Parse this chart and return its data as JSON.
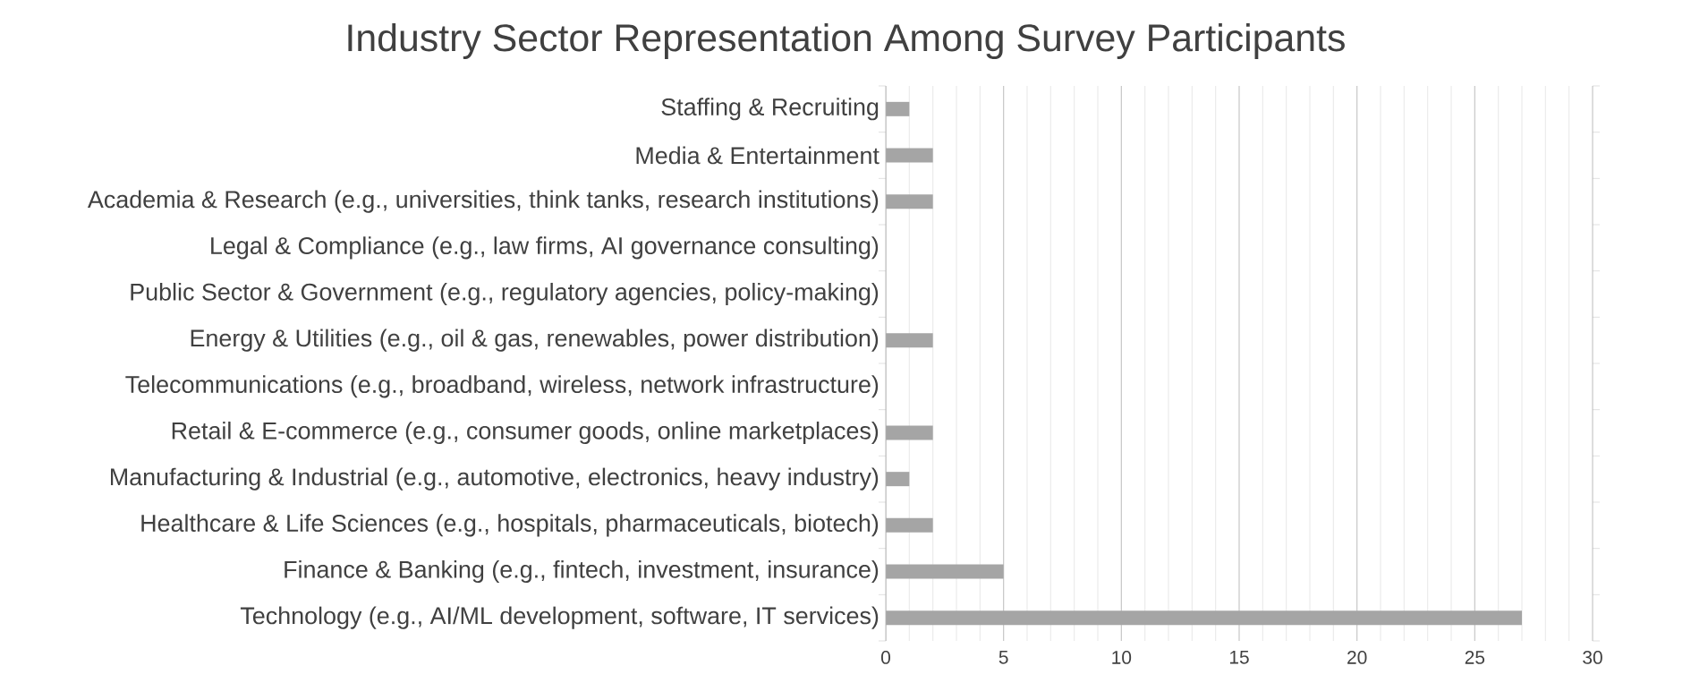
{
  "chart_data": {
    "type": "bar",
    "orientation": "horizontal",
    "title": "Industry Sector Representation Among Survey Participants",
    "categories": [
      "Staffing & Recruiting",
      "Media & Entertainment",
      "Academia & Research (e.g., universities, think tanks, research institutions)",
      "Legal & Compliance (e.g., law firms, AI governance consulting)",
      "Public Sector & Government (e.g., regulatory agencies, policy-making)",
      "Energy & Utilities (e.g., oil & gas, renewables, power distribution)",
      "Telecommunications (e.g., broadband, wireless, network infrastructure)",
      "Retail & E-commerce (e.g., consumer goods, online marketplaces)",
      "Manufacturing & Industrial (e.g., automotive, electronics, heavy industry)",
      "Healthcare & Life Sciences (e.g., hospitals, pharmaceuticals, biotech)",
      "Finance & Banking (e.g., fintech, investment, insurance)",
      "Technology (e.g., AI/ML development, software, IT services)"
    ],
    "values": [
      1,
      2,
      2,
      0,
      0,
      2,
      0,
      2,
      1,
      2,
      5,
      27
    ],
    "color": "#a5a5a5",
    "xlim": [
      0,
      30
    ],
    "xticks": [
      0,
      {
        "value": 1,
        "label": null
      },
      {
        "value": 2,
        "label": null
      },
      {
        "value": 3,
        "label": null
      },
      {
        "value": 4,
        "label": null
      },
      5,
      {
        "value": 6,
        "label": null
      },
      {
        "value": 7,
        "label": null
      },
      {
        "value": 8,
        "label": null
      },
      {
        "value": 9,
        "label": null
      },
      10,
      {
        "value": 11,
        "label": null
      },
      {
        "value": 12,
        "label": null
      },
      {
        "value": 13,
        "label": null
      },
      {
        "value": 14,
        "label": null
      },
      15,
      {
        "value": 16,
        "label": null
      },
      {
        "value": 17,
        "label": null
      },
      {
        "value": 18,
        "label": null
      },
      {
        "value": 19,
        "label": null
      },
      20,
      {
        "value": 21,
        "label": null
      },
      {
        "value": 22,
        "label": null
      },
      {
        "value": 23,
        "label": null
      },
      {
        "value": 24,
        "label": null
      },
      25,
      {
        "value": 26,
        "label": null
      },
      {
        "value": 27,
        "label": null
      },
      {
        "value": 28,
        "label": null
      },
      {
        "value": 29,
        "label": null
      },
      30
    ],
    "grid": "x"
  }
}
